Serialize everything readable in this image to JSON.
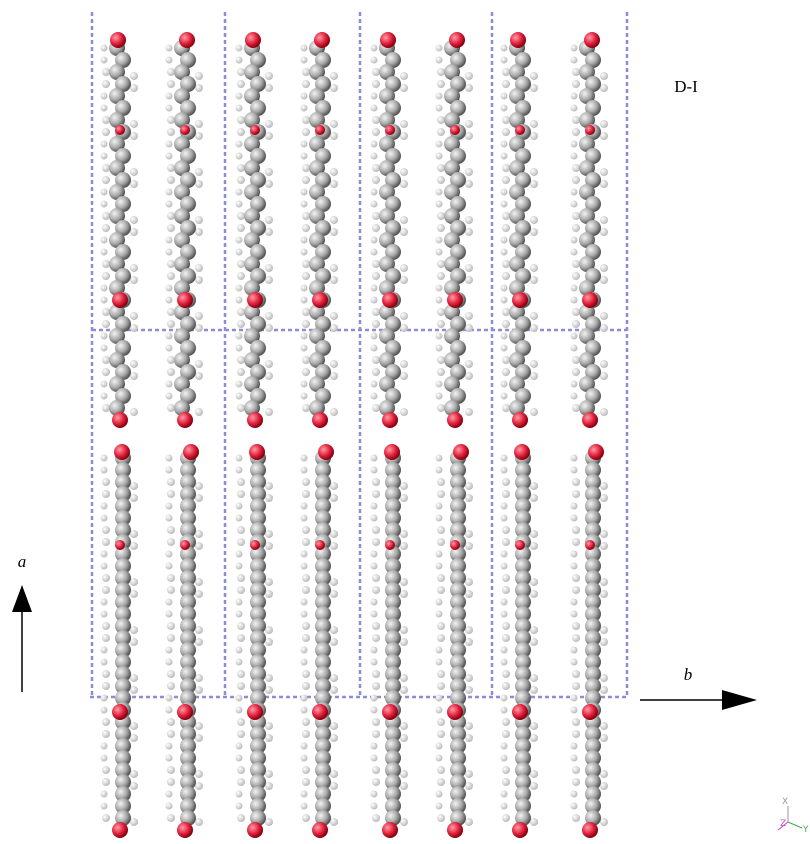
{
  "label": "D-I",
  "axes": {
    "a": "a",
    "b": "b"
  },
  "triad": {
    "x": "X",
    "y": "Y",
    "z": "Z"
  }
}
